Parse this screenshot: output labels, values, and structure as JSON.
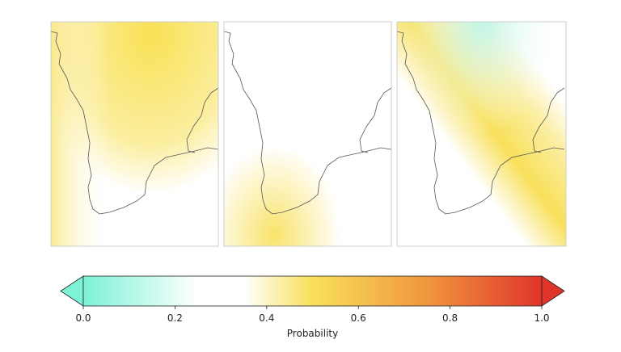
{
  "colorbar": {
    "label": "Probability",
    "lim": [
      0,
      1
    ],
    "ticks": [
      {
        "value": 0,
        "label": "0.0"
      },
      {
        "value": 0.2,
        "label": "0.2"
      },
      {
        "value": 0.4,
        "label": "0.4"
      },
      {
        "value": 0.6,
        "label": "0.6"
      },
      {
        "value": 0.8,
        "label": "0.8"
      },
      {
        "value": 1,
        "label": "1.0"
      }
    ]
  }
}
